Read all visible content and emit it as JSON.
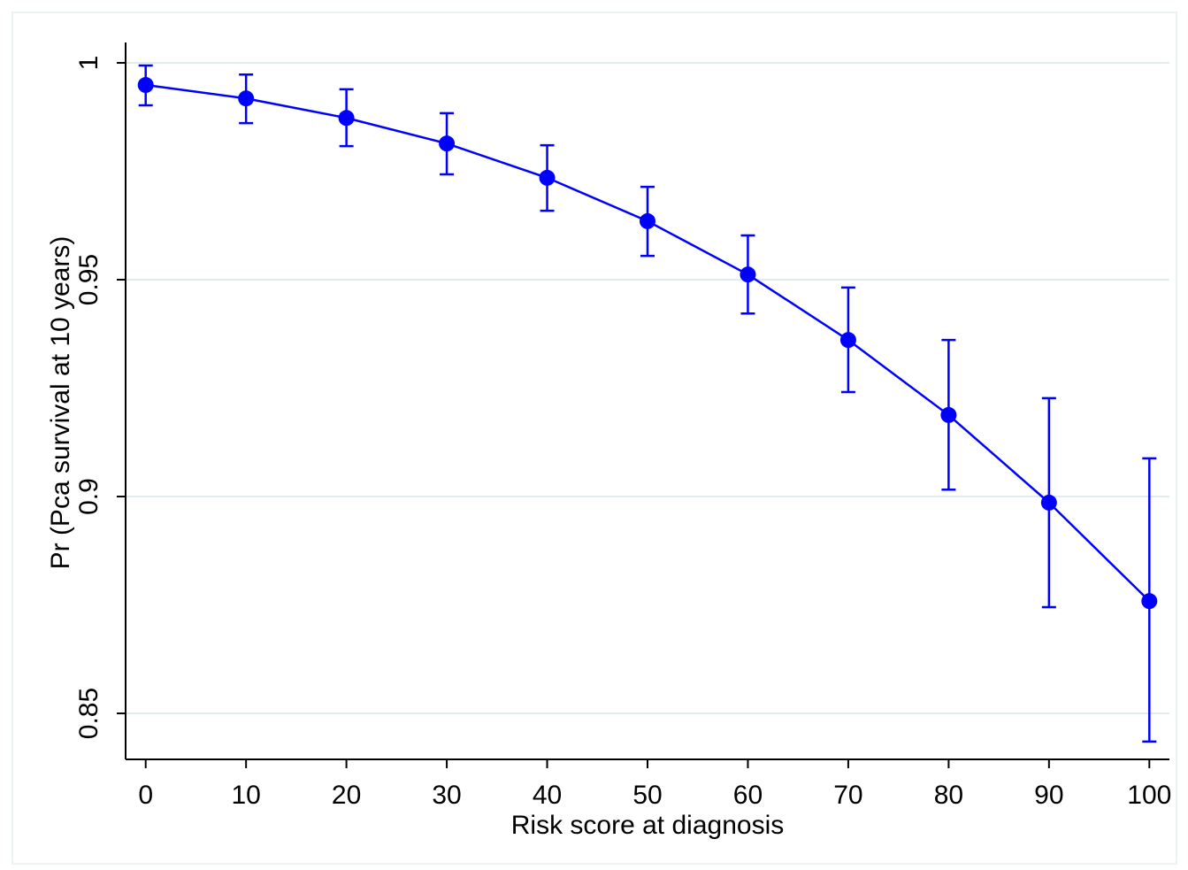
{
  "chart_data": {
    "type": "line",
    "x_label": "Risk score at diagnosis",
    "y_label": "Pr (Pca survival at 10 years)",
    "x": [
      0,
      10,
      20,
      30,
      40,
      50,
      60,
      70,
      80,
      90,
      100
    ],
    "series": [
      {
        "color": "#0000ff",
        "values": [
          0.9949,
          0.9918,
          0.9873,
          0.9814,
          0.9735,
          0.9635,
          0.9512,
          0.9361,
          0.9188,
          0.8986,
          0.8759
        ],
        "lower": [
          0.9902,
          0.9861,
          0.9808,
          0.9743,
          0.9659,
          0.9555,
          0.9422,
          0.9241,
          0.9016,
          0.8745,
          0.8435
        ],
        "upper": [
          0.9994,
          0.9973,
          0.9939,
          0.9884,
          0.981,
          0.9714,
          0.9602,
          0.9482,
          0.9361,
          0.9227,
          0.9088
        ]
      }
    ],
    "xlim": [
      -2,
      102
    ],
    "ylim": [
      0.8394,
      1.0047
    ],
    "xticks": [
      0,
      10,
      20,
      30,
      40,
      50,
      60,
      70,
      80,
      90,
      100
    ],
    "yticks": [
      0.85,
      0.9,
      0.95,
      1
    ],
    "grid": true
  }
}
